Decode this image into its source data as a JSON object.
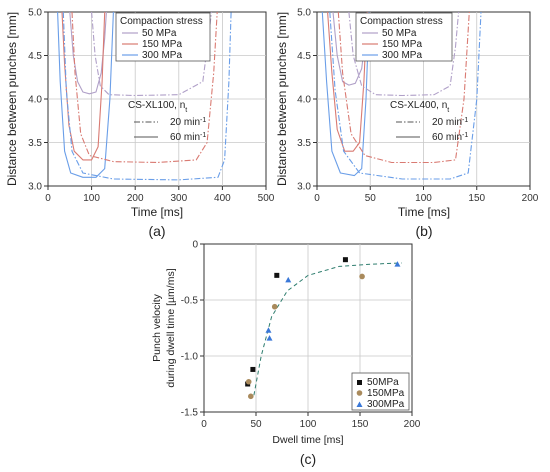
{
  "colors": {
    "s50": "#b0a0c8",
    "s150": "#d97a72",
    "s300": "#6a9ee8",
    "c_mark50": "#111111",
    "c_mark150": "#a98a5c",
    "c_mark300": "#3a78d8",
    "fit": "#2e7d6e"
  },
  "panel_labels": [
    "(a)",
    "(b)",
    "(c)"
  ],
  "chart_data": [
    {
      "id": "a",
      "type": "line",
      "xlabel": "Time [ms]",
      "ylabel": "Distance between punches [mm]",
      "xlim": [
        0,
        500
      ],
      "ylim": [
        3.0,
        5.0
      ],
      "xticks": [
        "0",
        "100",
        "200",
        "300",
        "400",
        "500"
      ],
      "yticks": [
        "3.0",
        "3.5",
        "4.0",
        "4.5",
        "5.0"
      ],
      "grid": true,
      "legend_title": "Compaction stress",
      "legend_entries": [
        "50 MPa",
        "150 MPa",
        "300 MPa"
      ],
      "legend2_title": "CS-XL100, n",
      "legend2_title_sub": "t",
      "legend2_entries": [
        "20 min",
        "60 min"
      ],
      "legend2_entries_sup": "-1",
      "series": [
        {
          "color": "s50",
          "dash": "solid",
          "x": [
            50,
            58,
            68,
            80,
            95,
            110,
            122,
            130,
            134
          ],
          "y": [
            5.0,
            4.5,
            4.2,
            4.08,
            4.06,
            4.08,
            4.3,
            4.7,
            5.0
          ]
        },
        {
          "color": "s150",
          "dash": "solid",
          "x": [
            32,
            38,
            48,
            60,
            80,
            100,
            115,
            124,
            130
          ],
          "y": [
            5.0,
            4.4,
            3.7,
            3.4,
            3.3,
            3.3,
            3.45,
            4.2,
            5.0
          ]
        },
        {
          "color": "s300",
          "dash": "solid",
          "x": [
            22,
            28,
            38,
            52,
            80,
            110,
            130,
            142,
            150
          ],
          "y": [
            5.0,
            4.2,
            3.4,
            3.15,
            3.1,
            3.1,
            3.2,
            4.0,
            5.0
          ]
        },
        {
          "color": "s50",
          "dash": "dashdot",
          "x": [
            100,
            108,
            120,
            140,
            200,
            300,
            355,
            368,
            375
          ],
          "y": [
            5.0,
            4.5,
            4.15,
            4.05,
            4.04,
            4.05,
            4.2,
            4.7,
            5.0
          ]
        },
        {
          "color": "s150",
          "dash": "dashdot",
          "x": [
            55,
            62,
            75,
            95,
            150,
            250,
            340,
            365,
            380,
            388
          ],
          "y": [
            5.0,
            4.3,
            3.6,
            3.35,
            3.28,
            3.27,
            3.3,
            3.5,
            4.3,
            5.0
          ]
        },
        {
          "color": "s300",
          "dash": "dashdot",
          "x": [
            35,
            42,
            55,
            80,
            150,
            300,
            390,
            405,
            415,
            420
          ],
          "y": [
            5.0,
            4.1,
            3.4,
            3.15,
            3.08,
            3.07,
            3.1,
            3.3,
            4.2,
            5.0
          ]
        }
      ]
    },
    {
      "id": "b",
      "type": "line",
      "xlabel": "Time [ms]",
      "ylabel": "Distance between punches [mm]",
      "xlim": [
        0,
        200
      ],
      "ylim": [
        3.0,
        5.0
      ],
      "xticks": [
        "0",
        "50",
        "100",
        "150",
        "200"
      ],
      "yticks": [
        "3.0",
        "3.5",
        "4.0",
        "4.5",
        "5.0"
      ],
      "grid": true,
      "legend_title": "Compaction stress",
      "legend_entries": [
        "50 MPa",
        "150 MPa",
        "300 MPa"
      ],
      "legend2_title": "CS-XL400, n",
      "legend2_title_sub": "t",
      "legend2_entries": [
        "20 min",
        "60 min"
      ],
      "legend2_entries_sup": "-1",
      "series": [
        {
          "color": "s50",
          "dash": "solid",
          "x": [
            15,
            19,
            24,
            30,
            36,
            42,
            46,
            48
          ],
          "y": [
            5.0,
            4.5,
            4.2,
            4.16,
            4.18,
            4.35,
            4.75,
            5.0
          ]
        },
        {
          "color": "s150",
          "dash": "solid",
          "x": [
            10,
            14,
            19,
            26,
            34,
            40,
            44,
            47
          ],
          "y": [
            5.0,
            4.3,
            3.65,
            3.4,
            3.4,
            3.5,
            4.2,
            5.0
          ]
        },
        {
          "color": "s300",
          "dash": "solid",
          "x": [
            5,
            9,
            14,
            22,
            35,
            42,
            46,
            49
          ],
          "y": [
            5.0,
            4.2,
            3.4,
            3.15,
            3.12,
            3.2,
            4.0,
            5.0
          ]
        },
        {
          "color": "s50",
          "dash": "dashdot",
          "x": [
            30,
            34,
            42,
            55,
            80,
            110,
            125,
            130,
            133
          ],
          "y": [
            5.0,
            4.5,
            4.15,
            4.05,
            4.04,
            4.05,
            4.15,
            4.6,
            5.0
          ]
        },
        {
          "color": "s150",
          "dash": "dashdot",
          "x": [
            20,
            24,
            32,
            45,
            70,
            110,
            130,
            138,
            143
          ],
          "y": [
            5.0,
            4.3,
            3.6,
            3.35,
            3.27,
            3.27,
            3.3,
            4.0,
            5.0
          ]
        },
        {
          "color": "s300",
          "dash": "dashdot",
          "x": [
            12,
            17,
            25,
            40,
            80,
            125,
            142,
            150,
            154
          ],
          "y": [
            5.0,
            4.1,
            3.4,
            3.15,
            3.08,
            3.08,
            3.15,
            4.0,
            5.0
          ]
        }
      ]
    },
    {
      "id": "c",
      "type": "scatter",
      "xlabel": "Dwell time [ms]",
      "ylabel_line1": "Punch velocity",
      "ylabel_line2": "during dwell time [µm/ms]",
      "xlim": [
        0,
        200
      ],
      "ylim": [
        -1.5,
        0.0
      ],
      "xticks": [
        "0",
        "50",
        "100",
        "150",
        "200"
      ],
      "yticks": [
        "-1.5",
        "-1.0",
        "-0.5",
        "0"
      ],
      "grid": true,
      "legend_entries": [
        "50MPa",
        "150MPa",
        "300MPa"
      ],
      "series": [
        {
          "name": "50MPa",
          "marker": "square",
          "color": "c_mark50",
          "x": [
            42,
            47,
            70,
            136
          ],
          "y": [
            -1.25,
            -1.12,
            -0.28,
            -0.14
          ]
        },
        {
          "name": "150MPa",
          "marker": "circle",
          "color": "c_mark150",
          "x": [
            43,
            45,
            68,
            152
          ],
          "y": [
            -1.23,
            -1.36,
            -0.56,
            -0.29
          ]
        },
        {
          "name": "300MPa",
          "marker": "triangle",
          "color": "c_mark300",
          "x": [
            62,
            63,
            81,
            186
          ],
          "y": [
            -0.77,
            -0.84,
            -0.32,
            -0.18
          ]
        }
      ],
      "fit": {
        "x": [
          48,
          55,
          65,
          80,
          100,
          130,
          160,
          190
        ],
        "y": [
          -1.35,
          -1.0,
          -0.65,
          -0.42,
          -0.28,
          -0.2,
          -0.18,
          -0.17
        ]
      }
    }
  ]
}
